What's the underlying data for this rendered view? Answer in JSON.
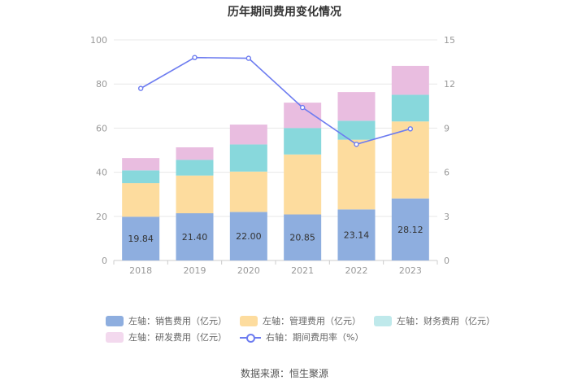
{
  "title": "历年期间费用变化情况",
  "source": "数据来源：恒生聚源",
  "chart_data": {
    "type": "bar",
    "stacked": true,
    "title": "历年期间费用变化情况",
    "categories": [
      "2018",
      "2019",
      "2020",
      "2021",
      "2022",
      "2023"
    ],
    "left_axis": {
      "ylim": [
        0,
        100
      ],
      "ticks": [
        "0",
        "20",
        "40",
        "60",
        "80",
        "100"
      ]
    },
    "right_axis": {
      "ylim": [
        0,
        15
      ],
      "ticks": [
        "0",
        "3",
        "6",
        "9",
        "12",
        "15"
      ]
    },
    "series": [
      {
        "name": "左轴：销售费用（亿元）",
        "axis": "left",
        "type": "bar",
        "color": "#8eaedf",
        "values": [
          19.84,
          21.4,
          22.0,
          20.85,
          23.14,
          28.12
        ],
        "labels": [
          "19.84",
          "21.40",
          "22.00",
          "20.85",
          "23.14",
          "28.12"
        ]
      },
      {
        "name": "左轴：管理费用（亿元）",
        "axis": "left",
        "type": "bar",
        "color": "#fddc9e",
        "values": [
          15.2,
          17.1,
          18.3,
          27.2,
          31.6,
          34.9
        ]
      },
      {
        "name": "左轴：财务费用（亿元）",
        "axis": "left",
        "type": "bar",
        "color": "#88d8dc",
        "values": [
          5.8,
          7.1,
          12.3,
          12.0,
          8.6,
          12.1
        ]
      },
      {
        "name": "左轴：研发费用（亿元）",
        "axis": "left",
        "type": "bar",
        "color": "#e9bde0",
        "values": [
          5.6,
          5.7,
          9.0,
          11.5,
          13.0,
          13.1
        ]
      },
      {
        "name": "右轴：期间费用率（%）",
        "axis": "right",
        "type": "line",
        "color": "#6d7cf0",
        "values": [
          11.7,
          13.8,
          13.75,
          10.4,
          7.9,
          8.95
        ]
      }
    ]
  }
}
